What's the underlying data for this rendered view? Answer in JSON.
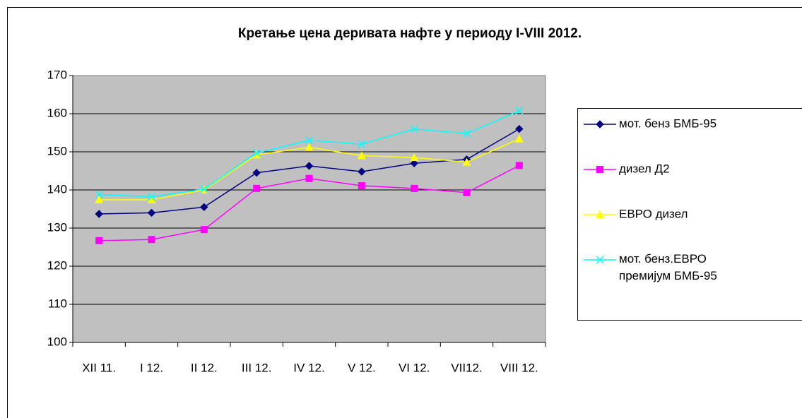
{
  "chart_data": {
    "type": "line",
    "title": "Кретање цена деривата нафте у периоду I-VIII 2012.",
    "categories": [
      "XII 11.",
      "I 12.",
      "II 12.",
      "III 12.",
      "IV 12.",
      "V 12.",
      "VI 12.",
      "VII12.",
      "VIII 12."
    ],
    "series": [
      {
        "name": "мот. бенз БМБ-95",
        "color": "#000080",
        "marker": "diamond",
        "values": [
          133.7,
          134,
          135.5,
          144.5,
          146.3,
          144.8,
          147,
          148,
          156
        ]
      },
      {
        "name": "дизел Д2",
        "color": "#ff00ff",
        "marker": "square",
        "values": [
          126.7,
          127,
          129.6,
          140.4,
          143,
          141.1,
          140.4,
          139.3,
          146.4
        ]
      },
      {
        "name": "ЕВРО дизел",
        "color": "#ffff00",
        "marker": "triangle",
        "values": [
          137.4,
          137.4,
          140,
          149.2,
          151.2,
          149,
          148.5,
          147.3,
          153.4
        ]
      },
      {
        "name": "мот. бенз.ЕВРО премијум БМБ-95",
        "color": "#00ffff",
        "marker": "x",
        "values": [
          138.8,
          138.2,
          140.2,
          149.7,
          153,
          152,
          156,
          154.8,
          160.8
        ]
      }
    ],
    "ylim": [
      100,
      170
    ],
    "yticks": [
      100,
      110,
      120,
      130,
      140,
      150,
      160,
      170
    ],
    "grid": true,
    "legend": "right"
  }
}
